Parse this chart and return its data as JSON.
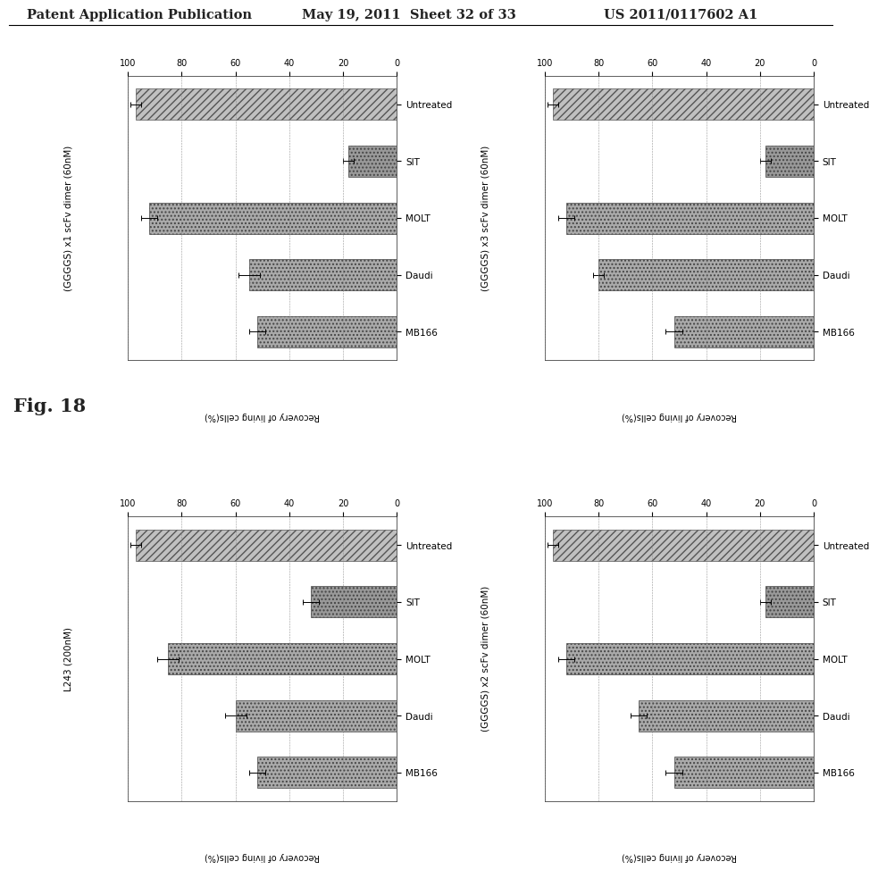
{
  "header_left": "Patent Application Publication",
  "header_center": "May 19, 2011  Sheet 32 of 33",
  "header_right": "US 2011/0117602 A1",
  "fig_label": "Fig. 18",
  "panels": [
    {
      "title": "(GGGGS) x1 scFv dimer (60nM)",
      "ylabel": "Recovery of living cells(%)",
      "xlim": [
        0,
        100
      ],
      "xticks": [
        0,
        20,
        40,
        60,
        80,
        100
      ],
      "categories": [
        "Untreated",
        "SIT",
        "MOLT",
        "Daudi",
        "MB166"
      ],
      "values": [
        97,
        18,
        92,
        55,
        52
      ],
      "error_bars": [
        2,
        2,
        3,
        4,
        3
      ],
      "position": "top_left"
    },
    {
      "title": "(GGGGS) x3 scFv dimer (60nM)",
      "ylabel": "Recovery of living cells(%)",
      "xlim": [
        0,
        100
      ],
      "xticks": [
        0,
        20,
        40,
        60,
        80,
        100
      ],
      "categories": [
        "Untreated",
        "SIT",
        "MOLT",
        "Daudi",
        "MB166"
      ],
      "values": [
        97,
        18,
        92,
        80,
        52
      ],
      "error_bars": [
        2,
        2,
        3,
        2,
        3
      ],
      "position": "top_right"
    },
    {
      "title": "L243 (200nM)",
      "ylabel": "Recovery of living cells(%)",
      "xlim": [
        0,
        100
      ],
      "xticks": [
        0,
        20,
        40,
        60,
        80,
        100
      ],
      "categories": [
        "Untreated",
        "SIT",
        "MOLT",
        "Daudi",
        "MB166"
      ],
      "values": [
        97,
        32,
        85,
        60,
        52
      ],
      "error_bars": [
        2,
        3,
        4,
        4,
        3
      ],
      "position": "bottom_left"
    },
    {
      "title": "(GGGGS) x2 scFv dimer (60nM)",
      "ylabel": "Recovery of living cells(%)",
      "xlim": [
        0,
        100
      ],
      "xticks": [
        0,
        20,
        40,
        60,
        80,
        100
      ],
      "categories": [
        "Untreated",
        "SIT",
        "MOLT",
        "Daudi",
        "MB166"
      ],
      "values": [
        97,
        18,
        92,
        65,
        52
      ],
      "error_bars": [
        2,
        2,
        3,
        3,
        3
      ],
      "position": "bottom_right"
    }
  ],
  "background_color": "#ffffff",
  "page_bg": "#d8d8d8"
}
